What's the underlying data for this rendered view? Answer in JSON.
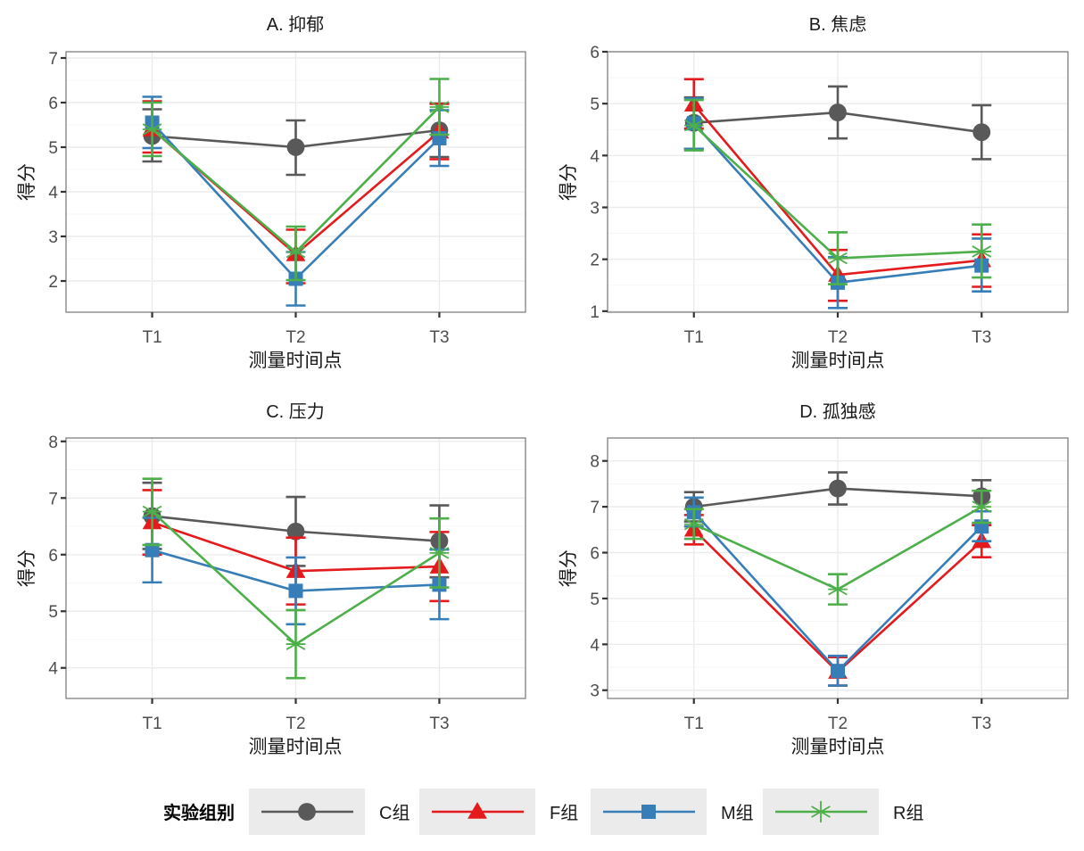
{
  "chart_data": [
    {
      "type": "line",
      "title": "A. 抑郁",
      "xlabel": "测量时间点",
      "ylabel": "得分",
      "categories": [
        "T1",
        "T2",
        "T3"
      ],
      "yticks": [
        2,
        3,
        4,
        5,
        6,
        7
      ],
      "ylim": [
        1.3,
        7.14
      ],
      "grid": true,
      "series": [
        {
          "name": "C组",
          "values": [
            5.25,
            5.0,
            5.38
          ],
          "lower": [
            4.68,
            4.38,
            4.78
          ],
          "upper": [
            5.85,
            5.6,
            5.98
          ]
        },
        {
          "name": "F组",
          "values": [
            5.4,
            2.6,
            5.35
          ],
          "lower": [
            4.88,
            1.95,
            4.73
          ],
          "upper": [
            6.03,
            3.15,
            5.97
          ]
        },
        {
          "name": "M组",
          "values": [
            5.55,
            2.05,
            5.2
          ],
          "lower": [
            4.98,
            1.45,
            4.58
          ],
          "upper": [
            6.13,
            2.65,
            5.83
          ]
        },
        {
          "name": "R组",
          "values": [
            5.4,
            2.65,
            5.9
          ],
          "lower": [
            4.8,
            2.02,
            5.28
          ],
          "upper": [
            6.0,
            3.22,
            6.53
          ]
        }
      ]
    },
    {
      "type": "line",
      "title": "B. 焦虑",
      "xlabel": "测量时间点",
      "ylabel": "得分",
      "categories": [
        "T1",
        "T2",
        "T3"
      ],
      "yticks": [
        1,
        2,
        3,
        4,
        5,
        6
      ],
      "ylim": [
        0.98,
        6.0
      ],
      "grid": true,
      "series": [
        {
          "name": "C组",
          "values": [
            4.63,
            4.83,
            4.45
          ],
          "lower": [
            4.13,
            4.33,
            3.93
          ],
          "upper": [
            5.12,
            5.33,
            4.97
          ]
        },
        {
          "name": "F组",
          "values": [
            4.98,
            1.7,
            1.98
          ],
          "lower": [
            4.52,
            1.2,
            1.47
          ],
          "upper": [
            5.47,
            2.18,
            2.48
          ]
        },
        {
          "name": "M组",
          "values": [
            4.62,
            1.55,
            1.88
          ],
          "lower": [
            4.13,
            1.06,
            1.38
          ],
          "upper": [
            5.1,
            2.04,
            2.4
          ]
        },
        {
          "name": "R组",
          "values": [
            4.58,
            2.02,
            2.15
          ],
          "lower": [
            4.1,
            1.52,
            1.65
          ],
          "upper": [
            5.07,
            2.52,
            2.67
          ]
        }
      ]
    },
    {
      "type": "line",
      "title": "C. 压力",
      "xlabel": "测量时间点",
      "ylabel": "得分",
      "categories": [
        "T1",
        "T2",
        "T3"
      ],
      "yticks": [
        4,
        5,
        6,
        7,
        8
      ],
      "ylim": [
        3.46,
        8.06
      ],
      "grid": true,
      "series": [
        {
          "name": "C组",
          "values": [
            6.68,
            6.41,
            6.24
          ],
          "lower": [
            6.1,
            5.8,
            5.6
          ],
          "upper": [
            7.27,
            7.02,
            6.87
          ]
        },
        {
          "name": "F组",
          "values": [
            6.57,
            5.71,
            5.79
          ],
          "lower": [
            6.0,
            5.12,
            5.18
          ],
          "upper": [
            7.14,
            6.3,
            6.4
          ]
        },
        {
          "name": "M组",
          "values": [
            6.08,
            5.36,
            5.47
          ],
          "lower": [
            5.51,
            4.77,
            4.86
          ],
          "upper": [
            6.65,
            5.95,
            6.09
          ]
        },
        {
          "name": "R组",
          "values": [
            6.76,
            4.42,
            6.03
          ],
          "lower": [
            6.17,
            3.82,
            5.42
          ],
          "upper": [
            7.34,
            5.02,
            6.64
          ]
        }
      ]
    },
    {
      "type": "line",
      "title": "D. 孤独感",
      "xlabel": "测量时间点",
      "ylabel": "得分",
      "categories": [
        "T1",
        "T2",
        "T3"
      ],
      "yticks": [
        3,
        4,
        5,
        6,
        7,
        8
      ],
      "ylim": [
        2.82,
        8.5
      ],
      "grid": true,
      "series": [
        {
          "name": "C组",
          "values": [
            7.0,
            7.4,
            7.23
          ],
          "lower": [
            6.68,
            7.05,
            6.9
          ],
          "upper": [
            7.32,
            7.75,
            7.58
          ]
        },
        {
          "name": "F组",
          "values": [
            6.5,
            3.4,
            6.25
          ],
          "lower": [
            6.18,
            3.1,
            5.9
          ],
          "upper": [
            6.82,
            3.72,
            6.6
          ]
        },
        {
          "name": "M组",
          "values": [
            6.88,
            3.42,
            6.57
          ],
          "lower": [
            6.57,
            3.1,
            6.25
          ],
          "upper": [
            7.2,
            3.75,
            6.9
          ]
        },
        {
          "name": "R组",
          "values": [
            6.62,
            5.2,
            7.0
          ],
          "lower": [
            6.3,
            4.87,
            6.65
          ],
          "upper": [
            6.95,
            5.53,
            7.35
          ]
        }
      ]
    }
  ],
  "legend": {
    "title": "实验组别",
    "position": "bottom",
    "items": [
      {
        "label": "C组",
        "color": "#595959",
        "shape": "circle"
      },
      {
        "label": "F组",
        "color": "#e41a1c",
        "shape": "triangle"
      },
      {
        "label": "M组",
        "color": "#377eb8",
        "shape": "square"
      },
      {
        "label": "R组",
        "color": "#4daf4a",
        "shape": "asterisk"
      }
    ]
  },
  "colors": {
    "panel_border": "#7f7f7f",
    "grid": "#ebebeb",
    "legend_key_bg": "#ebebeb"
  }
}
